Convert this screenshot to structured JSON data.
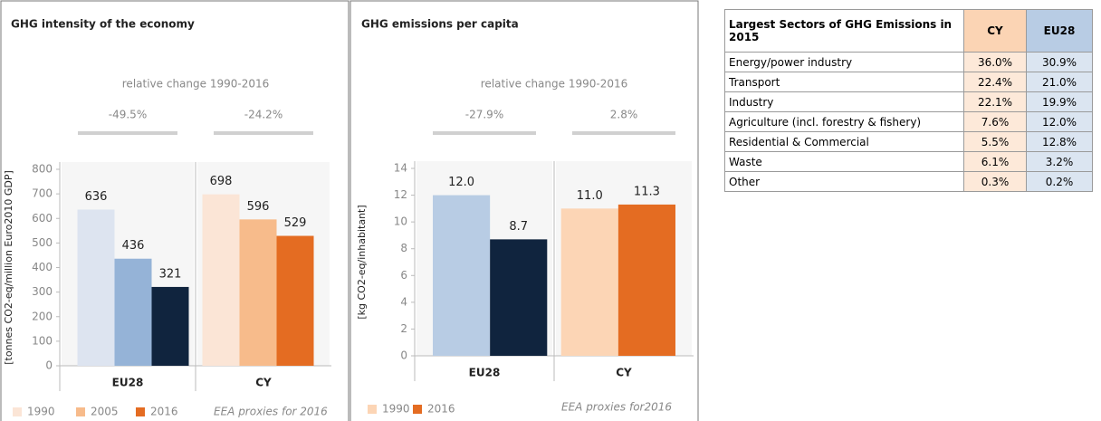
{
  "chart_data": [
    {
      "type": "bar",
      "title": "GHG intensity of the economy",
      "ylabel": "[tonnes CO2-eq/million Euro2010 GDP]",
      "annotation": "relative change 1990-2016",
      "change_values": [
        -49.5,
        -24.2
      ],
      "change_labels": [
        "-49.5%",
        "-24.2%"
      ],
      "note": "EEA proxies for 2016",
      "categories": [
        "EU28",
        "CY"
      ],
      "series": [
        {
          "name": "1990",
          "colors": [
            "#dde4f0",
            "#fbe5d6"
          ],
          "values": [
            636,
            698
          ]
        },
        {
          "name": "2005",
          "colors": [
            "#95b3d7",
            "#f7bb8b"
          ],
          "values": [
            436,
            596
          ]
        },
        {
          "name": "2016",
          "colors": [
            "#10243e",
            "#e46c22"
          ],
          "values": [
            321,
            529
          ]
        }
      ],
      "ylim": [
        0,
        800
      ],
      "yticks": [
        0,
        100,
        200,
        300,
        400,
        500,
        600,
        700,
        800
      ]
    },
    {
      "type": "bar",
      "title": "GHG emissions per capita",
      "ylabel": "[kg CO2-eq/inhabitant]",
      "annotation": "relative change 1990-2016",
      "change_values": [
        -27.9,
        2.8
      ],
      "change_labels": [
        "-27.9%",
        "2.8%"
      ],
      "note": "EEA proxies  for2016",
      "categories": [
        "EU28",
        "CY"
      ],
      "series": [
        {
          "name": "1990",
          "colors": [
            "#b8cce4",
            "#fcd5b5"
          ],
          "values": [
            12.0,
            11.0
          ],
          "value_labels": [
            "12.0",
            "11.0"
          ]
        },
        {
          "name": "2016",
          "colors": [
            "#10243e",
            "#e46c22"
          ],
          "values": [
            8.7,
            11.3
          ],
          "value_labels": [
            "8.7",
            "11.3"
          ]
        }
      ],
      "ylim": [
        0,
        14
      ],
      "yticks": [
        0,
        2,
        4,
        6,
        8,
        10,
        12,
        14
      ]
    }
  ],
  "table": {
    "header": [
      "Largest Sectors of GHG Emissions in 2015",
      "CY",
      "EU28"
    ],
    "rows": [
      [
        "Energy/power industry",
        "36.0%",
        "30.9%"
      ],
      [
        "Transport",
        "22.4%",
        "21.0%"
      ],
      [
        "Industry",
        "22.1%",
        "19.9%"
      ],
      [
        "Agriculture (incl. forestry & fishery)",
        "7.6%",
        "12.0%"
      ],
      [
        "Residential & Commercial",
        "5.5%",
        "12.8%"
      ],
      [
        "Waste",
        "6.1%",
        "3.2%"
      ],
      [
        "Other",
        "0.3%",
        "0.2%"
      ]
    ]
  }
}
